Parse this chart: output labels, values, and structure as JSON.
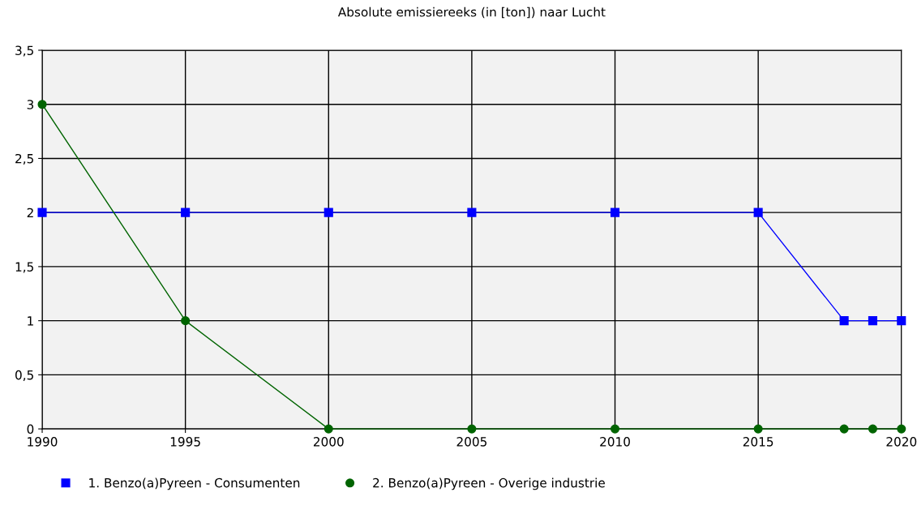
{
  "chart_data": {
    "type": "line",
    "title": "Absolute emissiereeks (in [ton]) naar Lucht",
    "x": [
      1990,
      1995,
      2000,
      2005,
      2010,
      2015,
      2018,
      2019,
      2020
    ],
    "series": [
      {
        "name": "1. Benzo(a)Pyreen - Consumenten",
        "color": "#0000ff",
        "marker": "square",
        "values": [
          2,
          2,
          2,
          2,
          2,
          2,
          1,
          1,
          1
        ]
      },
      {
        "name": "2. Benzo(a)Pyreen - Overige industrie",
        "color": "#006400",
        "marker": "circle",
        "values": [
          3,
          1,
          0,
          0,
          0,
          0,
          0,
          0,
          0
        ]
      }
    ],
    "xlim": [
      1990,
      2020
    ],
    "xticks": [
      1990,
      1995,
      2000,
      2005,
      2010,
      2015,
      2020
    ],
    "ylim": [
      0,
      3.5
    ],
    "yticks": [
      0,
      {
        "value": 0.5,
        "label": "0,5"
      },
      1,
      {
        "value": 1.5,
        "label": "1,5"
      },
      2,
      {
        "value": 2.5,
        "label": "2,5"
      },
      3,
      {
        "value": 3.5,
        "label": "3,5"
      }
    ],
    "grid": true,
    "legend": "bottom left"
  }
}
